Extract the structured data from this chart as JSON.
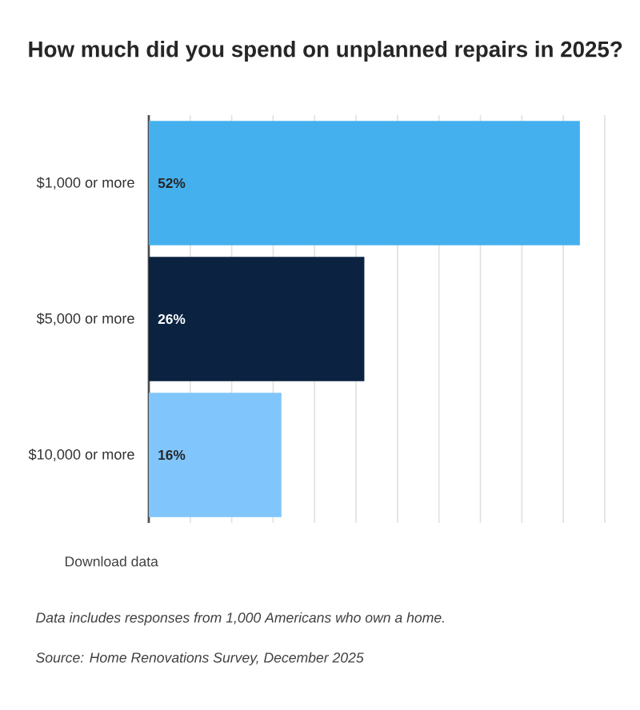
{
  "chart_data": {
    "type": "bar",
    "orientation": "horizontal",
    "title": "How much did you spend on unplanned repairs in 2025?",
    "categories": [
      "$1,000 or more",
      "$5,000 or more",
      "$10,000 or more"
    ],
    "values": [
      52,
      26,
      16
    ],
    "colors": [
      "#45b0ee",
      "#0b2341",
      "#80c6fc"
    ],
    "value_labels": [
      "52%",
      "26%",
      "16%"
    ],
    "xlim": [
      0,
      55
    ],
    "xticks": [
      {
        "value": 5,
        "label": null
      },
      {
        "value": 10,
        "label": null
      },
      {
        "value": 15,
        "label": null
      },
      {
        "value": 20,
        "label": null
      },
      {
        "value": 25,
        "label": null
      },
      {
        "value": 30,
        "label": null
      },
      {
        "value": 35,
        "label": null
      },
      {
        "value": 40,
        "label": null
      },
      {
        "value": 45,
        "label": null
      },
      {
        "value": 50,
        "label": null
      },
      {
        "value": 55,
        "label": null
      }
    ],
    "grid": "x",
    "tick_labels": "y",
    "annotations": [
      "Download data",
      "Data includes responses from 1,000 Americans who own a home.",
      "Source: Home Renovations Survey, December 2025"
    ]
  }
}
